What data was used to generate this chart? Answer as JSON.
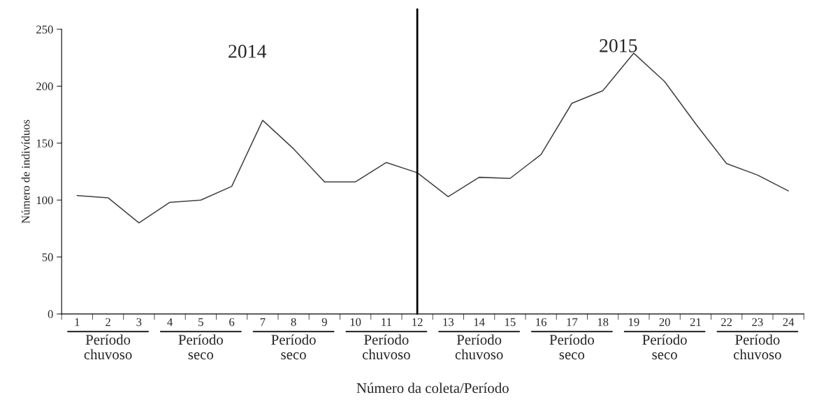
{
  "chart_data": {
    "type": "line",
    "xlabel": "Número da coleta/Período",
    "ylabel": "Número de indivíduos",
    "categories": [
      "1",
      "2",
      "3",
      "4",
      "5",
      "6",
      "7",
      "8",
      "9",
      "10",
      "11",
      "12",
      "13",
      "14",
      "15",
      "16",
      "17",
      "18",
      "19",
      "20",
      "21",
      "22",
      "23",
      "24"
    ],
    "series": [
      {
        "color": "#404040",
        "values": [
          104,
          102,
          80,
          98,
          100,
          112,
          170,
          145,
          116,
          116,
          133,
          124,
          103,
          120,
          119,
          140,
          185,
          196,
          229,
          204,
          167,
          132,
          122,
          108
        ]
      }
    ],
    "ylim": [
      0,
      250
    ],
    "yticks": [
      0,
      50,
      100,
      150,
      200,
      250
    ],
    "grid": false,
    "marker": "none",
    "line_style": "solid",
    "ref_lines": [
      {
        "axis": "x",
        "value": "12",
        "color": "#000000"
      }
    ],
    "annotations": [
      "2014",
      "2015",
      "Período chuvoso",
      "Período seco",
      "Período seco",
      "Período chuvoso",
      "Período chuvoso",
      "Período seco",
      "Período seco",
      "Período chuvoso"
    ]
  }
}
